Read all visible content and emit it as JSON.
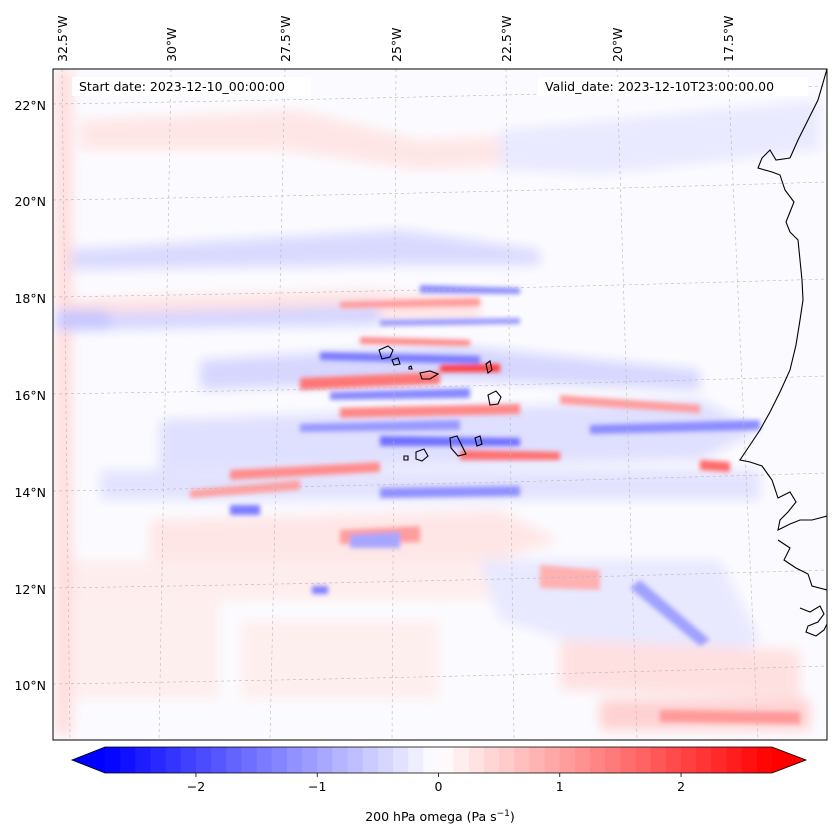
{
  "map": {
    "start_date": "Start date: 2023-12-10_00:00:00",
    "valid_date": "Valid_date: 2023-12-10T23:00:00.00",
    "lon_labels": [
      "32.5°W",
      "30°W",
      "27.5°W",
      "25°W",
      "22.5°W",
      "20°W",
      "17.5°W"
    ],
    "lat_labels": [
      "22°N",
      "20°N",
      "18°N",
      "16°N",
      "14°N",
      "12°N",
      "10°N"
    ],
    "field": "200 hPa omega",
    "colors": {
      "negative": "#0000ff",
      "zero": "#ffffff",
      "positive": "#ff0000",
      "coast": "#000000",
      "grid": "#b0b0b0"
    }
  },
  "colorbar": {
    "tick_labels": [
      "−2",
      "−1",
      "0",
      "1",
      "2"
    ],
    "label_main": "200 hPa omega (Pa s",
    "label_sup": "−1",
    "label_close": ")",
    "vmin": -2.75,
    "vmax": 2.75
  },
  "chart_data": {
    "type": "heatmap",
    "title": "",
    "variable": "200 hPa omega",
    "units": "Pa s-1",
    "lon_range": [
      -32.5,
      -15.75
    ],
    "lat_range": [
      8.9,
      22.8
    ],
    "color_range": [
      -2.75,
      2.75
    ],
    "colorbar_ticks": [
      -2,
      -1,
      0,
      1,
      2
    ]
  }
}
